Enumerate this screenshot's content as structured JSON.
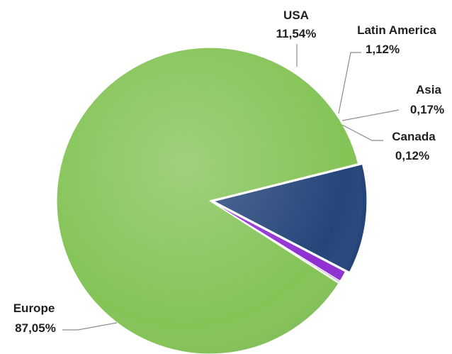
{
  "chart_data": {
    "type": "pie",
    "title": "",
    "slices": [
      {
        "name": "USA",
        "value": 11.54,
        "label": "11,54%",
        "color": "#25457a"
      },
      {
        "name": "Latin America",
        "value": 1.12,
        "label": "1,12%",
        "color": "#8f2fd1"
      },
      {
        "name": "Asia",
        "value": 0.17,
        "label": "0,17%",
        "color": "#b9a3d9"
      },
      {
        "name": "Canada",
        "value": 0.12,
        "label": "0,12%",
        "color": "#a7d46a"
      },
      {
        "name": "Europe",
        "value": 87.05,
        "label": "87,05%",
        "color": "#84c457"
      }
    ],
    "legend": "none",
    "start_angle_deg": -14,
    "exploded_slice": "USA"
  }
}
